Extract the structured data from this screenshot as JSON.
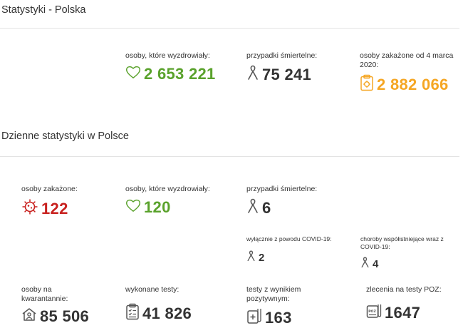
{
  "section_total": {
    "title": "Statystyki - Polska",
    "recovered": {
      "label": "osoby, które wyzdrowiały:",
      "value": "2 653 221",
      "icon": "heart-icon"
    },
    "deaths": {
      "label": "przypadki śmiertelne:",
      "value": "75 241",
      "icon": "ribbon-icon"
    },
    "infected": {
      "label": "osoby zakażone od 4 marca 2020:",
      "value": "2 882 066",
      "icon": "clipboard-virus-icon"
    }
  },
  "section_daily": {
    "title": "Dzienne statystyki w Polsce",
    "infected": {
      "label": "osoby zakażone:",
      "value": "122",
      "icon": "virus-icon"
    },
    "recovered": {
      "label": "osoby, które wyzdrowiały:",
      "value": "120",
      "icon": "heart-icon"
    },
    "deaths": {
      "label": "przypadki śmiertelne:",
      "value": "6",
      "icon": "ribbon-icon"
    },
    "deaths_covid_only": {
      "label": "wyłącznie z powodu COVID-19:",
      "value": "2",
      "icon": "ribbon-icon"
    },
    "deaths_comorbid": {
      "label": "choroby współistniejące wraz z COVID-19:",
      "value": "4",
      "icon": "ribbon-icon"
    },
    "quarantine": {
      "label": "osoby na kwarantannie:",
      "value": "85 506",
      "icon": "house-person-icon"
    },
    "tests": {
      "label": "wykonane testy:",
      "value": "41 826",
      "icon": "test-list-icon"
    },
    "positive_tests": {
      "label": "testy z wynikiem pozytywnym:",
      "value": "163",
      "icon": "positive-test-icon"
    },
    "poz_orders": {
      "label": "zlecenia na testy POZ:",
      "value": "1647",
      "icon": "poz-order-icon"
    }
  },
  "colors": {
    "green": "#5aa22c",
    "red": "#c8211f",
    "orange": "#f5a623",
    "dark": "#333333"
  }
}
